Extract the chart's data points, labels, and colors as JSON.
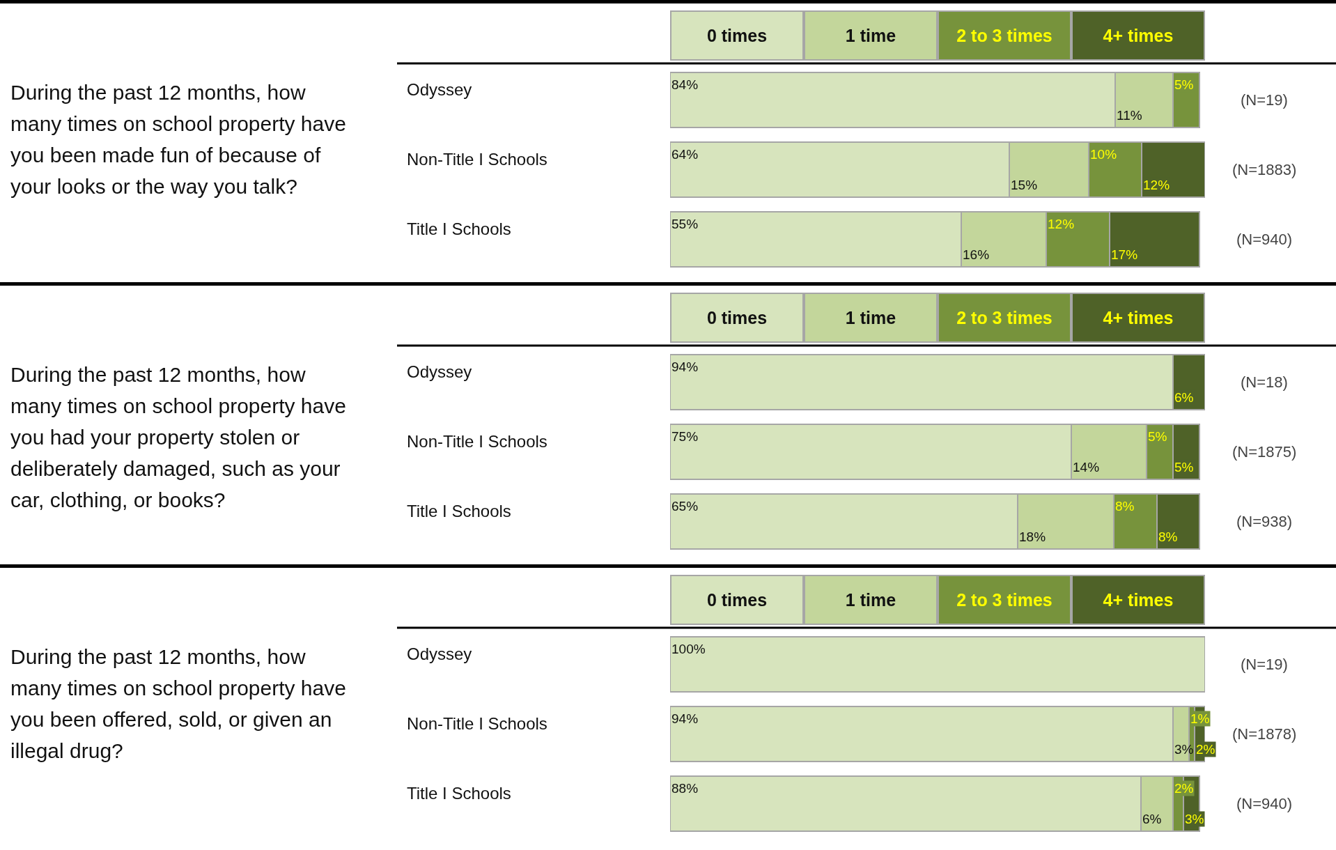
{
  "chart_data": [
    {
      "type": "bar",
      "orientation": "horizontal",
      "stacked": true,
      "legend": "top",
      "tick_labels": "y",
      "title": "During the past 12 months, how many times on school property have you been made fun of because of your looks or the way you talk?",
      "categories": [
        "Odyssey",
        "Non-Title I Schools",
        "Title I Schools"
      ],
      "series": [
        {
          "name": "0 times",
          "color": "#d7e4bd",
          "values": [
            84,
            64,
            55
          ],
          "value_labels": [
            "84%",
            "64%",
            "55%"
          ]
        },
        {
          "name": "1 time",
          "color": "#c3d69b",
          "values": [
            11,
            15,
            16
          ],
          "value_labels": [
            "11%",
            "15%",
            "16%"
          ]
        },
        {
          "name": "2 to 3 times",
          "color": "#77933c",
          "values": [
            5,
            10,
            12
          ],
          "value_labels": [
            "5%",
            "10%",
            "12%"
          ]
        },
        {
          "name": "4+ times",
          "color": "#4f6228",
          "values": [
            null,
            12,
            17
          ],
          "value_labels": [
            null,
            "12%",
            "17%"
          ]
        }
      ],
      "annotations": [
        "(N=19)",
        "(N=1883)",
        "(N=940)"
      ]
    },
    {
      "type": "bar",
      "orientation": "horizontal",
      "stacked": true,
      "legend": "top",
      "tick_labels": "y",
      "title": "During the past 12 months, how many times on school property have you had your property stolen or deliberately damaged, such as your car, clothing, or books?",
      "categories": [
        "Odyssey",
        "Non-Title I Schools",
        "Title I Schools"
      ],
      "series": [
        {
          "name": "0 times",
          "color": "#d7e4bd",
          "values": [
            94,
            75,
            65
          ],
          "value_labels": [
            "94%",
            "75%",
            "65%"
          ]
        },
        {
          "name": "1 time",
          "color": "#c3d69b",
          "values": [
            null,
            14,
            18
          ],
          "value_labels": [
            null,
            "14%",
            "18%"
          ]
        },
        {
          "name": "2 to 3 times",
          "color": "#77933c",
          "values": [
            null,
            5,
            8
          ],
          "value_labels": [
            null,
            "5%",
            "8%"
          ]
        },
        {
          "name": "4+ times",
          "color": "#4f6228",
          "values": [
            6,
            5,
            8
          ],
          "value_labels": [
            "6%",
            "5%",
            "8%"
          ]
        }
      ],
      "annotations": [
        "(N=18)",
        "(N=1875)",
        "(N=938)"
      ]
    },
    {
      "type": "bar",
      "orientation": "horizontal",
      "stacked": true,
      "legend": "top",
      "tick_labels": "y",
      "title": "During the past 12 months, how many times on school property have you been offered, sold, or given an illegal drug?",
      "categories": [
        "Odyssey",
        "Non-Title I Schools",
        "Title I Schools"
      ],
      "series": [
        {
          "name": "0 times",
          "color": "#d7e4bd",
          "values": [
            100,
            94,
            88
          ],
          "value_labels": [
            "100%",
            "94%",
            "88%"
          ]
        },
        {
          "name": "1 time",
          "color": "#c3d69b",
          "values": [
            null,
            3,
            6
          ],
          "value_labels": [
            null,
            "3%",
            "6%"
          ]
        },
        {
          "name": "2 to 3 times",
          "color": "#77933c",
          "values": [
            null,
            1,
            2
          ],
          "value_labels": [
            null,
            "1%",
            "2%"
          ]
        },
        {
          "name": "4+ times",
          "color": "#4f6228",
          "values": [
            null,
            2,
            3
          ],
          "value_labels": [
            null,
            "2%",
            "3%"
          ]
        }
      ],
      "annotations": [
        "(N=19)",
        "(N=1878)",
        "(N=940)"
      ]
    }
  ]
}
